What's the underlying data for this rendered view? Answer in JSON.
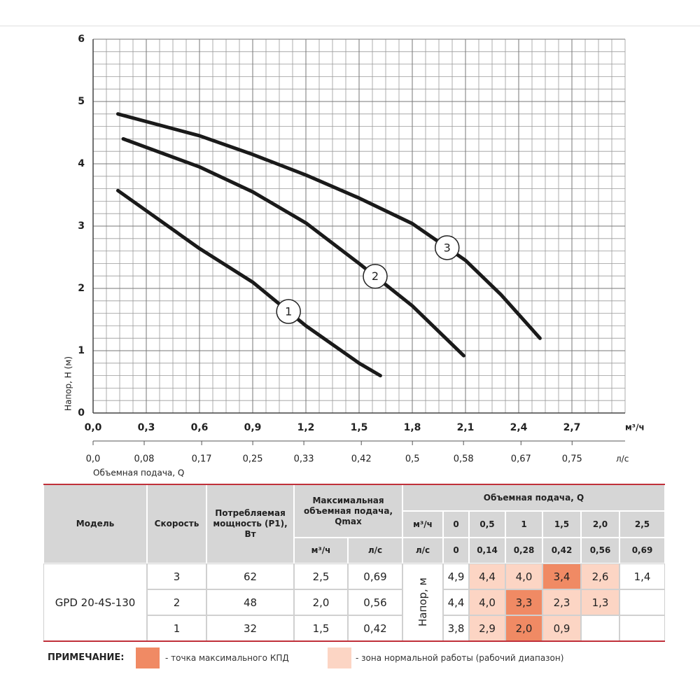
{
  "chart_data": {
    "type": "line",
    "x_label": "Объемная подача, Q",
    "y_label": "Напор, Н (м)",
    "x_unit": "м³/ч",
    "x2_unit": "л/с",
    "xlim": [
      0,
      3.0
    ],
    "xticks": [
      {
        "value": 0,
        "label": "0,0"
      },
      {
        "value": 0.3,
        "label": "0,3"
      },
      {
        "value": 0.6,
        "label": "0,6"
      },
      {
        "value": 0.9,
        "label": "0,9"
      },
      {
        "value": 1.2,
        "label": "1,2"
      },
      {
        "value": 1.5,
        "label": "1,5"
      },
      {
        "value": 1.8,
        "label": "1,8"
      },
      {
        "value": 2.1,
        "label": "2,1"
      },
      {
        "value": 2.4,
        "label": "2,4"
      },
      {
        "value": 2.7,
        "label": "2,7"
      }
    ],
    "x2lim": [
      0,
      0.833
    ],
    "x2ticks": [
      {
        "value": 0,
        "label": "0,0"
      },
      {
        "value": 0.08,
        "label": "0,08"
      },
      {
        "value": 0.17,
        "label": "0,17"
      },
      {
        "value": 0.25,
        "label": "0,25"
      },
      {
        "value": 0.33,
        "label": "0,33"
      },
      {
        "value": 0.42,
        "label": "0,42"
      },
      {
        "value": 0.5,
        "label": "0,5"
      },
      {
        "value": 0.58,
        "label": "0,58"
      },
      {
        "value": 0.67,
        "label": "0,67"
      },
      {
        "value": 0.75,
        "label": "0,75"
      }
    ],
    "ylim": [
      0,
      6
    ],
    "yticks": [
      0,
      1,
      2,
      3,
      4,
      5,
      6
    ],
    "grid": true,
    "series": [
      {
        "name": "1",
        "color": "#1a1a1a",
        "x": [
          0.14,
          0.6,
          0.9,
          1.2,
          1.5,
          1.62
        ],
        "values": [
          3.57,
          2.64,
          2.1,
          1.4,
          0.8,
          0.6
        ]
      },
      {
        "name": "2",
        "color": "#1a1a1a",
        "x": [
          0.17,
          0.6,
          0.9,
          1.2,
          1.5,
          1.8,
          2.09
        ],
        "values": [
          4.4,
          3.95,
          3.55,
          3.05,
          2.4,
          1.72,
          0.92
        ]
      },
      {
        "name": "3",
        "color": "#1a1a1a",
        "x": [
          0.14,
          0.6,
          0.9,
          1.2,
          1.5,
          1.8,
          2.1,
          2.3,
          2.52
        ],
        "values": [
          4.8,
          4.45,
          4.15,
          3.82,
          3.45,
          3.04,
          2.45,
          1.9,
          1.2
        ]
      }
    ]
  },
  "table": {
    "headers": {
      "model": "Модель",
      "speed": "Скорость",
      "power": "Потребляемая мощность (Р1), Вт",
      "qmax": "Максимальная объемная подача, Qmax",
      "qmax_units": [
        "м³/ч",
        "л/с"
      ],
      "flow": "Объемная подача, Q",
      "flow_units": [
        "м³/ч",
        "л/с"
      ],
      "flow_m3h": [
        "0",
        "0,5",
        "1",
        "1,5",
        "2,0",
        "2,5"
      ],
      "flow_ls": [
        "0",
        "0,14",
        "0,28",
        "0,42",
        "0,56",
        "0,69"
      ],
      "head": "Напор, м"
    },
    "model": "GPD 20-4S-130",
    "zone_colors": {
      "max": "#f08a64",
      "work": "#fcd5c4"
    },
    "rows": [
      {
        "speed": "3",
        "power": "62",
        "qmax_m3h": "2,5",
        "qmax_ls": "0,69",
        "heads": [
          "4,9",
          "4,4",
          "4,0",
          "3,4",
          "2,6",
          "1,4"
        ],
        "zones": [
          "none",
          "work",
          "work",
          "max",
          "work",
          "none"
        ]
      },
      {
        "speed": "2",
        "power": "48",
        "qmax_m3h": "2,0",
        "qmax_ls": "0,56",
        "heads": [
          "4,4",
          "4,0",
          "3,3",
          "2,3",
          "1,3",
          null
        ],
        "zones": [
          "none",
          "work",
          "max",
          "work",
          "work",
          "none"
        ]
      },
      {
        "speed": "1",
        "power": "32",
        "qmax_m3h": "1,5",
        "qmax_ls": "0,42",
        "heads": [
          "3,8",
          "2,9",
          "2,0",
          "0,9",
          null,
          null
        ],
        "zones": [
          "none",
          "work",
          "max",
          "work",
          "none",
          "none"
        ]
      }
    ]
  },
  "note": {
    "title": "ПРИМЕЧАНИЕ:",
    "max": "- точка максимального КПД",
    "work": "- зона нормальной работы (рабочий диапазон)"
  }
}
